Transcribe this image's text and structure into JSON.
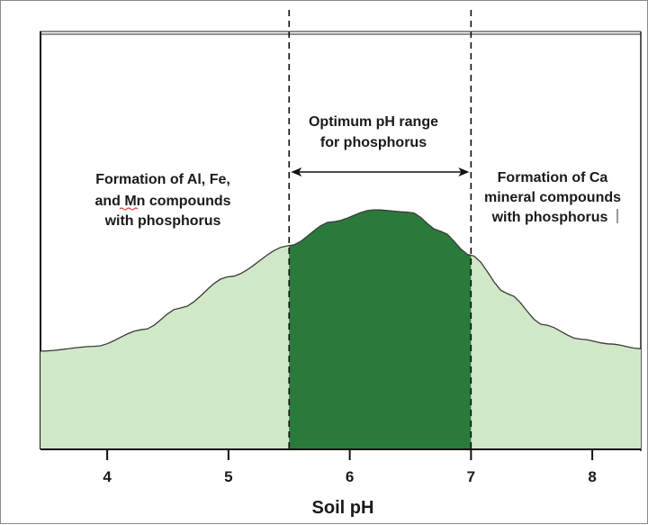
{
  "chart_data": {
    "type": "area",
    "title": "",
    "xlabel": "Soil pH",
    "ylabel": "",
    "xlim": [
      3.45,
      8.4
    ],
    "ylim": [
      0,
      1
    ],
    "x_ticks": [
      {
        "value": 4,
        "label": "4"
      },
      {
        "value": 5,
        "label": "5"
      },
      {
        "value": 6,
        "label": "6"
      },
      {
        "value": 7,
        "label": "7"
      },
      {
        "value": 8,
        "label": "8"
      }
    ],
    "optimum_range": [
      5.5,
      7.0
    ],
    "availability_curve": {
      "x": [
        3.45,
        3.9,
        4.3,
        4.6,
        5.0,
        5.5,
        5.85,
        6.2,
        6.5,
        6.75,
        7.0,
        7.3,
        7.6,
        7.9,
        8.15,
        8.4
      ],
      "y": [
        0.41,
        0.43,
        0.5,
        0.59,
        0.72,
        0.85,
        0.95,
        1.0,
        0.99,
        0.91,
        0.81,
        0.65,
        0.52,
        0.46,
        0.44,
        0.42
      ]
    },
    "annotations": {
      "left": [
        "Formation of Al, Fe,",
        "and Mn compounds",
        "with phosphorus"
      ],
      "center": [
        "Optimum pH range",
        "for phosphorus"
      ],
      "right": [
        "Formation of Ca",
        "mineral compounds",
        "with phosphorus"
      ]
    },
    "colors": {
      "outer_fill": "#d0e8c7",
      "optimum_fill": "#2a7a3c",
      "curve": "#3b3b3b",
      "axis": "#111111"
    }
  }
}
